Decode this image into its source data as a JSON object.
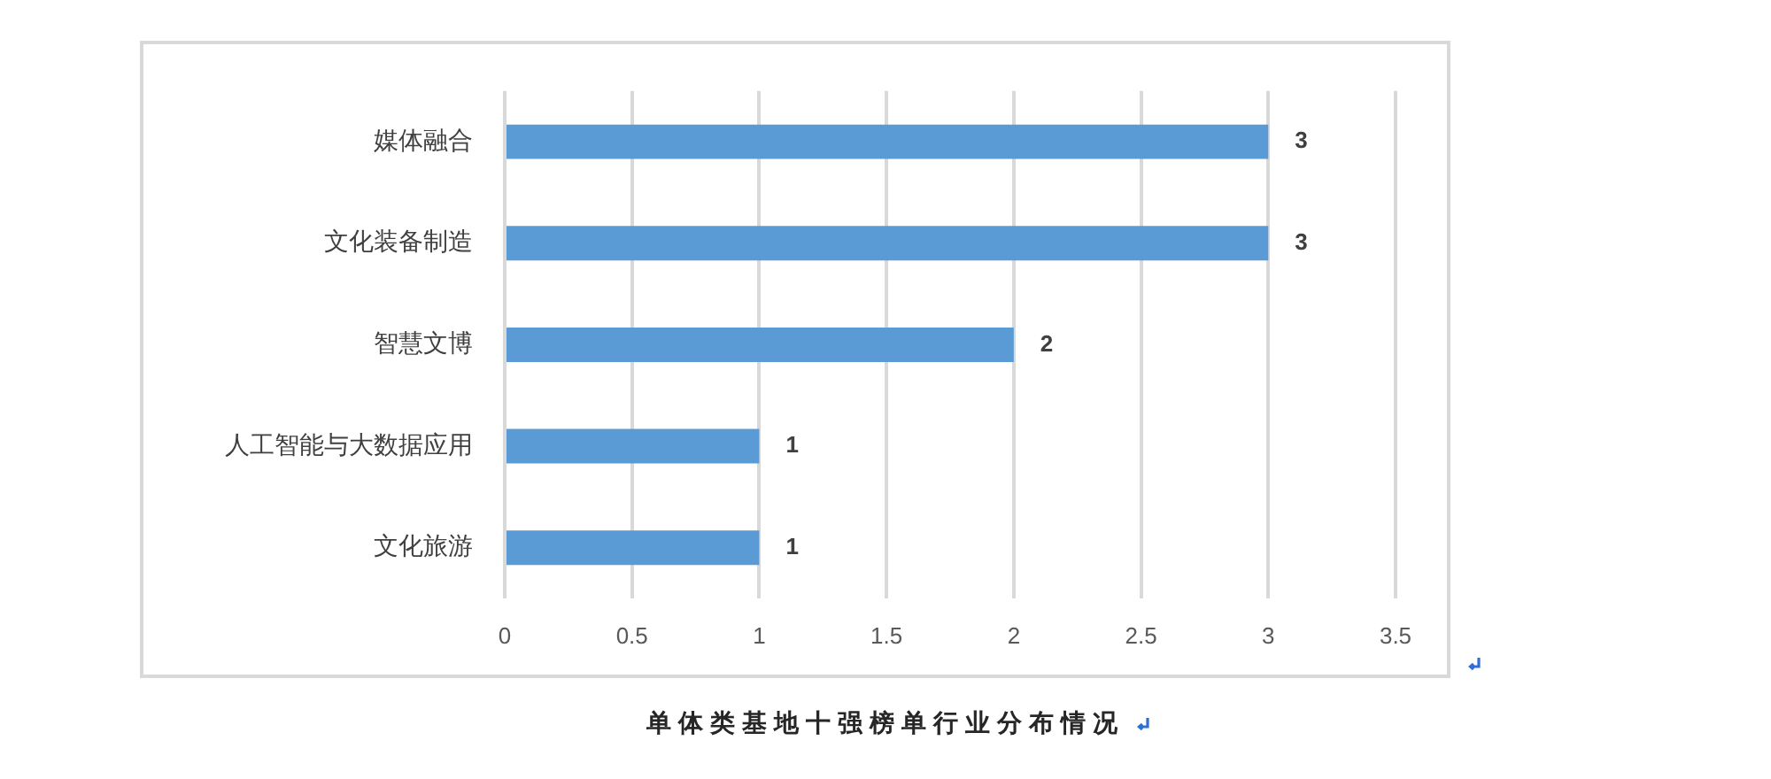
{
  "chart_data": {
    "type": "bar",
    "orientation": "horizontal",
    "title": "单体类基地十强榜单行业分布情况",
    "categories": [
      "媒体融合",
      "文化装备制造",
      "智慧文博",
      "人工智能与大数据应用",
      "文化旅游"
    ],
    "values": [
      3,
      3,
      2,
      1,
      1
    ],
    "color": "#5b9bd5",
    "xlim": [
      0,
      3.5
    ],
    "xticks": [
      0,
      0.5,
      1,
      1.5,
      2,
      2.5,
      3,
      3.5
    ],
    "grid": "x",
    "legend": false,
    "data_labels": true
  }
}
